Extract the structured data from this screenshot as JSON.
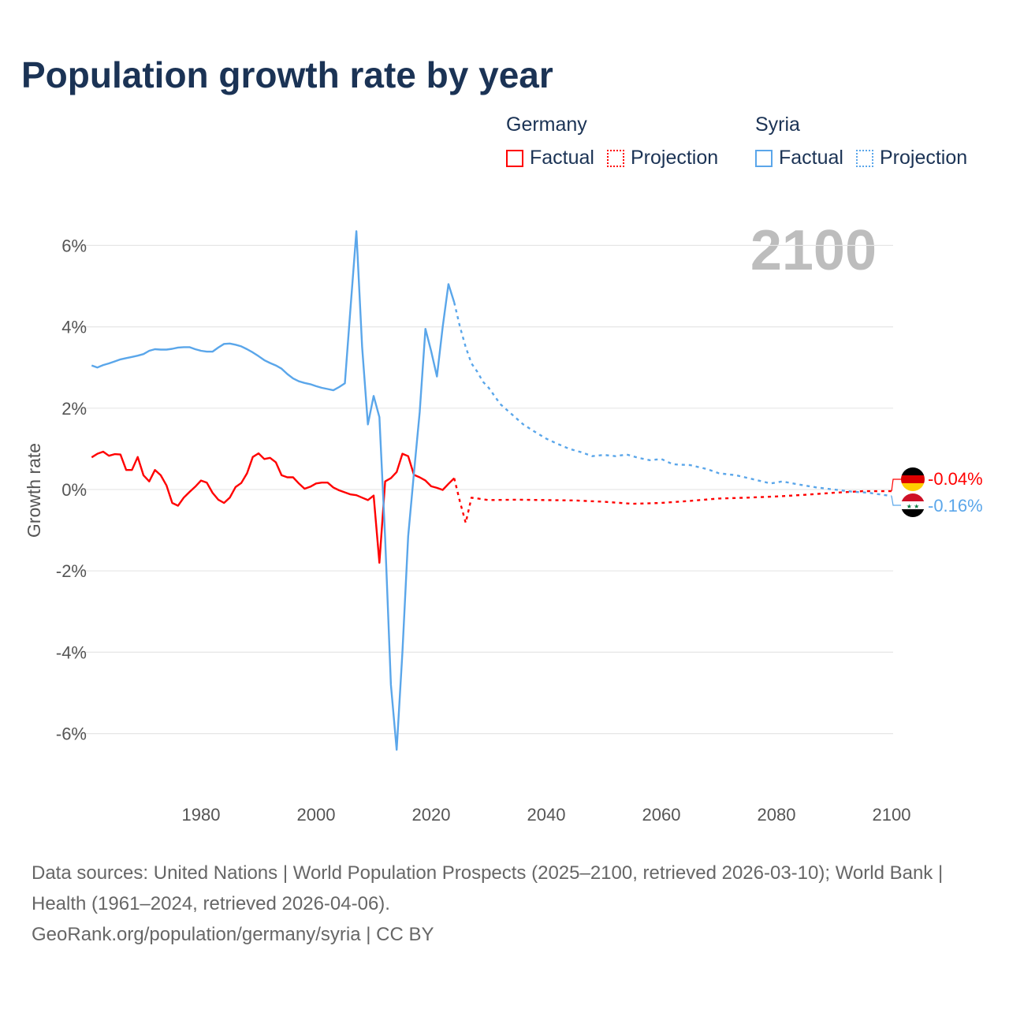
{
  "title": "Population growth rate by year",
  "legend": {
    "germany": {
      "name": "Germany",
      "factual": "Factual",
      "projection": "Projection",
      "color": "#ff0000"
    },
    "syria": {
      "name": "Syria",
      "factual": "Factual",
      "projection": "Projection",
      "color": "#5aa6ea"
    }
  },
  "year_watermark": "2100",
  "end_labels": {
    "germany": "-0.04%",
    "syria": "-0.16%"
  },
  "footer": {
    "sources": "Data sources: United Nations | World Population Prospects (2025–2100, retrieved 2026-03-10); World Bank | Health (1961–2024, retrieved 2026-04-06).",
    "credit": "GeoRank.org/population/germany/syria | CC BY"
  },
  "chart_data": {
    "type": "line",
    "title": "Population growth rate by year",
    "ylabel": "Growth rate",
    "xlabel": "",
    "xlim": [
      1961,
      2100
    ],
    "ylim": [
      -7,
      7
    ],
    "x_ticks": [
      1980,
      2000,
      2020,
      2040,
      2060,
      2080,
      2100
    ],
    "x_tick_labels": [
      "1980",
      "2000",
      "2020",
      "2040",
      "2060",
      "2080",
      "2100"
    ],
    "y_ticks": [
      6,
      4,
      2,
      0,
      -2,
      -4,
      -6
    ],
    "y_tick_labels": [
      "6%",
      "4%",
      "2%",
      "0%",
      "-2%",
      "-4%",
      "-6%"
    ],
    "grid": true,
    "series": [
      {
        "name": "Germany Factual",
        "country": "Germany",
        "kind": "factual",
        "color": "#ff0000",
        "start_year": 1961,
        "values": [
          0.79,
          0.88,
          0.93,
          0.83,
          0.87,
          0.86,
          0.48,
          0.48,
          0.8,
          0.35,
          0.2,
          0.48,
          0.35,
          0.1,
          -0.33,
          -0.4,
          -0.2,
          -0.06,
          0.07,
          0.22,
          0.17,
          -0.08,
          -0.25,
          -0.33,
          -0.2,
          0.06,
          0.16,
          0.4,
          0.8,
          0.89,
          0.75,
          0.78,
          0.67,
          0.35,
          0.3,
          0.3,
          0.15,
          0.02,
          0.07,
          0.15,
          0.17,
          0.17,
          0.05,
          -0.02,
          -0.07,
          -0.12,
          -0.14,
          -0.2,
          -0.26,
          -0.15,
          -1.8,
          0.2,
          0.28,
          0.43,
          0.88,
          0.82,
          0.36,
          0.3,
          0.22,
          0.08,
          0.04,
          -0.01,
          0.14,
          0.28
        ]
      },
      {
        "name": "Germany Projection",
        "country": "Germany",
        "kind": "projection",
        "color": "#ff0000",
        "x": [
          2024,
          2025,
          2026,
          2027,
          2030,
          2035,
          2040,
          2045,
          2050,
          2055,
          2060,
          2065,
          2070,
          2075,
          2080,
          2085,
          2090,
          2095,
          2100
        ],
        "values": [
          0.28,
          -0.3,
          -0.82,
          -0.2,
          -0.26,
          -0.25,
          -0.26,
          -0.27,
          -0.3,
          -0.35,
          -0.33,
          -0.28,
          -0.22,
          -0.2,
          -0.17,
          -0.13,
          -0.08,
          -0.04,
          -0.04
        ]
      },
      {
        "name": "Syria Factual",
        "country": "Syria",
        "kind": "factual",
        "color": "#5aa6ea",
        "start_year": 1961,
        "values": [
          3.05,
          3.0,
          3.06,
          3.1,
          3.15,
          3.2,
          3.23,
          3.26,
          3.29,
          3.33,
          3.41,
          3.45,
          3.44,
          3.44,
          3.46,
          3.49,
          3.5,
          3.5,
          3.45,
          3.41,
          3.39,
          3.39,
          3.49,
          3.58,
          3.59,
          3.56,
          3.52,
          3.45,
          3.37,
          3.28,
          3.18,
          3.11,
          3.05,
          2.97,
          2.84,
          2.73,
          2.66,
          2.62,
          2.59,
          2.54,
          2.5,
          2.47,
          2.44,
          2.52,
          2.61,
          4.5,
          6.35,
          3.5,
          1.6,
          2.3,
          1.78,
          -1.2,
          -4.8,
          -6.4,
          -4.0,
          -1.15,
          0.4,
          1.9,
          3.95,
          3.4,
          2.78,
          4.0,
          5.05,
          4.6
        ]
      },
      {
        "name": "Syria Projection",
        "country": "Syria",
        "kind": "projection",
        "color": "#5aa6ea",
        "x": [
          2024,
          2025,
          2026,
          2027,
          2028,
          2029,
          2030,
          2032,
          2034,
          2036,
          2038,
          2040,
          2042,
          2044,
          2046,
          2048,
          2050,
          2052,
          2054,
          2056,
          2058,
          2060,
          2062,
          2065,
          2068,
          2070,
          2073,
          2076,
          2079,
          2081,
          2084,
          2087,
          2090,
          2093,
          2096,
          2100
        ],
        "values": [
          4.6,
          4.0,
          3.5,
          3.1,
          2.9,
          2.65,
          2.5,
          2.1,
          1.85,
          1.6,
          1.42,
          1.25,
          1.12,
          1.0,
          0.92,
          0.82,
          0.85,
          0.82,
          0.86,
          0.78,
          0.72,
          0.75,
          0.62,
          0.6,
          0.5,
          0.4,
          0.35,
          0.25,
          0.15,
          0.2,
          0.12,
          0.05,
          0.0,
          -0.05,
          -0.08,
          -0.16
        ]
      }
    ]
  }
}
